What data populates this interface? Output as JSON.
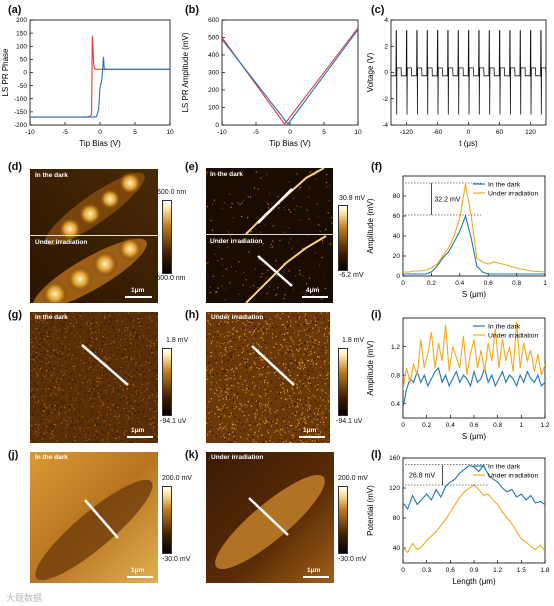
{
  "panel_labels": {
    "a": "(a)",
    "b": "(b)",
    "c": "(c)",
    "d": "(d)",
    "e": "(e)",
    "f": "(f)",
    "g": "(g)",
    "h": "(h)",
    "i": "(i)",
    "j": "(j)",
    "k": "(k)",
    "l": "(l)"
  },
  "watermark": "大题数据",
  "images": {
    "d_top_label": "In the dark",
    "d_bot_label": "Under irradiation",
    "d_scale": "1μm",
    "d_cbar_max": "600.0 nm",
    "d_cbar_min": "-600.0 nm",
    "e_top_label": "In the dark",
    "e_bot_label": "Under irradiation",
    "e_scale": "4μm",
    "e_cbar_max": "30.8 mV",
    "e_cbar_min": "-6.2 mV",
    "g_label": "In the dark",
    "g_scale": "1μm",
    "h_label": "Under irradiation",
    "h_scale": "1μm",
    "h_cbar_max": "1.8 mV",
    "h_cbar_min": "-94.1 uV",
    "g_cbar_max": "1.8 mV",
    "g_cbar_min": "-94.1 uV",
    "j_label": "In the dark",
    "j_scale": "1μm",
    "j_cbar_max": "200.0 mV",
    "j_cbar_min": "-30.0 mV",
    "k_label": "Under irradiation",
    "k_scale": "1μm",
    "k_cbar_max": "200.0 mV",
    "k_cbar_min": "-30.0 mV"
  },
  "colors": {
    "dark_series": "#1f77b4",
    "irr_series": "#f2a91e",
    "red": "#e5393a",
    "black": "#111111"
  },
  "chart_data": [
    {
      "id": "a",
      "type": "line",
      "xlabel": "Tip Bias (V)",
      "ylabel": "LS PR Phase",
      "xlim": [
        -10,
        10
      ],
      "ylim": [
        -200,
        200
      ],
      "xticks": [
        -10,
        -5,
        0,
        5,
        10
      ],
      "yticks": [
        -200,
        -150,
        -100,
        -50,
        0,
        50,
        100,
        150,
        200
      ],
      "series": [
        {
          "color": "#e5393a",
          "x": [
            -10,
            -2,
            -1.5,
            -1.2,
            -1.1,
            -1.0,
            -0.9,
            -0.8,
            -0.6,
            0,
            2,
            10
          ],
          "y": [
            -170,
            -170,
            -168,
            -160,
            140,
            90,
            30,
            15,
            12,
            12,
            12,
            12
          ]
        },
        {
          "color": "#1f77b4",
          "x": [
            -10,
            -1,
            -0.5,
            -0.2,
            0,
            0.3,
            0.5,
            0.6,
            0.8,
            1,
            2,
            10
          ],
          "y": [
            -170,
            -170,
            -168,
            -140,
            -60,
            -20,
            60,
            15,
            12,
            12,
            12,
            12
          ]
        }
      ]
    },
    {
      "id": "b",
      "type": "line",
      "xlabel": "Tip Bias (V)",
      "ylabel": "LS PR Amplitude (mV)",
      "xlim": [
        -10,
        10
      ],
      "ylim": [
        0,
        600
      ],
      "xticks": [
        -10,
        -5,
        0,
        5,
        10
      ],
      "yticks": [
        0,
        100,
        200,
        300,
        400,
        500,
        600
      ],
      "series": [
        {
          "color": "#e5393a",
          "x": [
            -10,
            -0.8,
            10
          ],
          "y": [
            500,
            5,
            555
          ]
        },
        {
          "color": "#1f77b4",
          "x": [
            -10,
            -0.3,
            10
          ],
          "y": [
            490,
            5,
            545
          ]
        }
      ]
    },
    {
      "id": "c",
      "type": "line",
      "xlabel": "t (μs)",
      "ylabel": "Voltage (V)",
      "xlim": [
        -150,
        150
      ],
      "ylim": [
        -4,
        4
      ],
      "xticks": [
        -120,
        -60,
        0,
        60,
        120
      ],
      "yticks": [
        -4,
        -2,
        0,
        2,
        4
      ],
      "period_us": 20,
      "pulse_amp_V": 3.2
    },
    {
      "id": "f",
      "type": "line",
      "xlabel": "S (μm)",
      "ylabel": "Amplitude (mV)",
      "xlim": [
        0,
        1.0
      ],
      "ylim": [
        0,
        100
      ],
      "xticks": [
        0.0,
        0.2,
        0.4,
        0.6,
        0.8,
        1.0
      ],
      "yticks": [
        0,
        20,
        40,
        60,
        80
      ],
      "legend": [
        "In the dark",
        "Under irradiation"
      ],
      "annotation": "32.2 mV",
      "series": [
        {
          "name": "In the dark",
          "color": "#1f77b4",
          "x": [
            0.0,
            0.04,
            0.08,
            0.12,
            0.16,
            0.2,
            0.24,
            0.28,
            0.32,
            0.36,
            0.4,
            0.44,
            0.48,
            0.52,
            0.56,
            0.6,
            0.7,
            0.8,
            0.9,
            1.0
          ],
          "y": [
            2,
            2,
            2,
            2,
            2,
            4,
            10,
            18,
            24,
            34,
            45,
            60,
            38,
            10,
            4,
            2,
            2,
            2,
            2,
            2
          ]
        },
        {
          "name": "Under irradiation",
          "color": "#f2a91e",
          "x": [
            0.0,
            0.04,
            0.08,
            0.12,
            0.16,
            0.2,
            0.24,
            0.28,
            0.32,
            0.36,
            0.4,
            0.44,
            0.48,
            0.52,
            0.56,
            0.6,
            0.64,
            0.7,
            0.8,
            0.9,
            1.0
          ],
          "y": [
            4,
            4,
            5,
            5,
            6,
            8,
            12,
            20,
            28,
            40,
            58,
            92,
            60,
            18,
            14,
            12,
            14,
            12,
            8,
            5,
            4
          ]
        }
      ]
    },
    {
      "id": "i",
      "type": "line",
      "xlabel": "S (μm)",
      "ylabel": "Amplitude (mV)",
      "xlim": [
        0,
        1.2
      ],
      "ylim": [
        0.2,
        1.6
      ],
      "xticks": [
        0.0,
        0.2,
        0.4,
        0.6,
        0.8,
        1.0,
        1.2
      ],
      "yticks": [
        0.4,
        0.8,
        1.2
      ],
      "legend": [
        "In the dark",
        "Under irradiation"
      ],
      "series": [
        {
          "name": "In the dark",
          "color": "#1f77b4",
          "x": [
            0.0,
            0.03,
            0.06,
            0.09,
            0.12,
            0.15,
            0.18,
            0.21,
            0.24,
            0.27,
            0.3,
            0.33,
            0.36,
            0.39,
            0.42,
            0.45,
            0.48,
            0.51,
            0.54,
            0.57,
            0.6,
            0.63,
            0.66,
            0.69,
            0.72,
            0.75,
            0.78,
            0.81,
            0.84,
            0.87,
            0.9,
            0.93,
            0.96,
            0.99,
            1.02,
            1.05,
            1.08,
            1.11,
            1.14,
            1.17,
            1.2
          ],
          "y": [
            0.35,
            0.6,
            0.75,
            0.7,
            0.85,
            0.7,
            0.8,
            0.65,
            0.75,
            0.85,
            0.9,
            0.7,
            0.8,
            0.65,
            0.75,
            0.85,
            0.7,
            0.8,
            0.75,
            0.65,
            0.85,
            0.7,
            0.75,
            0.9,
            0.7,
            0.8,
            0.65,
            0.75,
            0.85,
            0.7,
            0.8,
            0.75,
            0.65,
            0.8,
            0.7,
            0.85,
            0.75,
            0.7,
            0.8,
            0.65,
            0.7
          ]
        },
        {
          "name": "Under irradiation",
          "color": "#f2a91e",
          "x": [
            0.0,
            0.03,
            0.06,
            0.09,
            0.12,
            0.15,
            0.18,
            0.21,
            0.24,
            0.27,
            0.3,
            0.33,
            0.36,
            0.39,
            0.42,
            0.45,
            0.48,
            0.51,
            0.54,
            0.57,
            0.6,
            0.63,
            0.66,
            0.69,
            0.72,
            0.75,
            0.78,
            0.81,
            0.84,
            0.87,
            0.9,
            0.93,
            0.96,
            0.99,
            1.02,
            1.05,
            1.08,
            1.11,
            1.14,
            1.17,
            1.2
          ],
          "y": [
            0.6,
            0.9,
            0.7,
            0.95,
            0.8,
            1.3,
            0.9,
            1.1,
            1.4,
            0.9,
            1.25,
            1.0,
            1.5,
            0.85,
            1.2,
            1.05,
            0.9,
            1.35,
            0.8,
            1.1,
            1.3,
            0.9,
            1.15,
            0.85,
            1.25,
            1.0,
            1.45,
            0.9,
            1.3,
            1.0,
            1.2,
            0.85,
            1.55,
            0.9,
            1.25,
            1.0,
            1.15,
            0.85,
            1.1,
            0.8,
            0.95
          ]
        }
      ]
    },
    {
      "id": "l",
      "type": "line",
      "xlabel": "Length (μm)",
      "ylabel": "Potential (mV)",
      "xlim": [
        0,
        1.8
      ],
      "ylim": [
        20,
        160
      ],
      "xticks": [
        0.0,
        0.3,
        0.6,
        0.9,
        1.2,
        1.5,
        1.8
      ],
      "yticks": [
        40,
        80,
        120,
        160
      ],
      "legend": [
        "In the dark",
        "Under irradiation"
      ],
      "annotation": "26.8 mV",
      "series": [
        {
          "name": "In the dark",
          "color": "#1f77b4",
          "x": [
            0.0,
            0.06,
            0.12,
            0.18,
            0.24,
            0.3,
            0.36,
            0.42,
            0.48,
            0.54,
            0.6,
            0.66,
            0.72,
            0.78,
            0.84,
            0.9,
            0.96,
            1.02,
            1.08,
            1.14,
            1.2,
            1.26,
            1.32,
            1.38,
            1.44,
            1.5,
            1.56,
            1.62,
            1.68,
            1.74,
            1.8
          ],
          "y": [
            100,
            92,
            110,
            98,
            105,
            112,
            104,
            118,
            108,
            122,
            128,
            132,
            140,
            145,
            150,
            148,
            142,
            150,
            138,
            132,
            128,
            120,
            115,
            118,
            108,
            112,
            104,
            110,
            100,
            102,
            98
          ]
        },
        {
          "name": "Under irradiation",
          "color": "#f2a91e",
          "x": [
            0.0,
            0.06,
            0.12,
            0.18,
            0.24,
            0.3,
            0.36,
            0.42,
            0.48,
            0.54,
            0.6,
            0.66,
            0.72,
            0.78,
            0.84,
            0.9,
            0.96,
            1.02,
            1.08,
            1.14,
            1.2,
            1.26,
            1.32,
            1.38,
            1.44,
            1.5,
            1.56,
            1.62,
            1.68,
            1.74,
            1.8
          ],
          "y": [
            40,
            34,
            46,
            38,
            42,
            50,
            56,
            62,
            70,
            78,
            88,
            98,
            108,
            115,
            120,
            124,
            118,
            110,
            112,
            104,
            98,
            88,
            80,
            72,
            62,
            52,
            48,
            42,
            38,
            44,
            36
          ]
        }
      ]
    }
  ]
}
